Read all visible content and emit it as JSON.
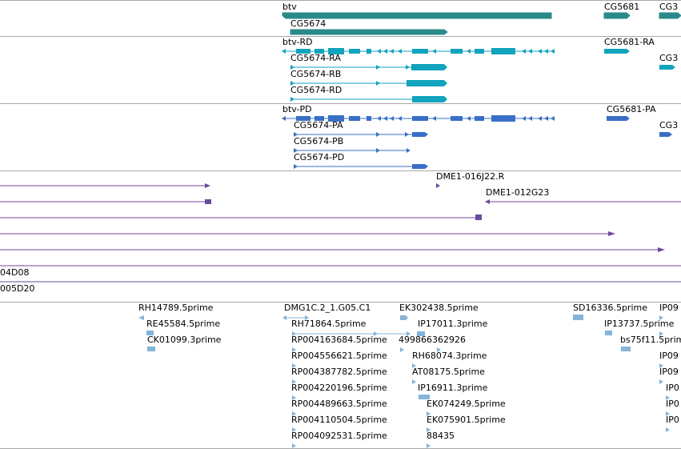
{
  "colors": {
    "gene": "#2a8a8a",
    "flybase_tx": "#12a3bd",
    "refseq_tx": "#3a6fc7",
    "clone": "#6a4aa0",
    "est": "#84b4d8",
    "divider": "#a8a8a8"
  },
  "genes": {
    "labels": [
      "btv",
      "CG5674",
      "CG5681",
      "CG3"
    ]
  },
  "flybase": {
    "labels": [
      "btv-RD",
      "CG5674-RA",
      "CG5674-RB",
      "CG5674-RD",
      "CG5681-RA",
      "CG3"
    ]
  },
  "refseq": {
    "labels": [
      "btv-PD",
      "CG5674-PA",
      "CG5674-PB",
      "CG5674-PD",
      "CG5681-PA",
      "CG3"
    ]
  },
  "clones": {
    "labels": [
      "DME1-016J22.R",
      "DME1-012G23",
      "04D08",
      "005D20"
    ]
  },
  "ests": {
    "labels": [
      "RH14789.5prime",
      "RE45584.5prime",
      "CK01099.3prime",
      "DMG1C.2_1.G05.C1",
      "RH71864.5prime",
      "RP004163684.5prime",
      "RP004556621.5prime",
      "RP004387782.5prime",
      "RP004220196.5prime",
      "RP004489663.5prime",
      "RP004110504.5prime",
      "RP004092531.5prime",
      "EK302438.5prime",
      "IP17011.3prime",
      "499866362926",
      "RH68074.3prime",
      "AT08175.5prime",
      "IP16911.3prime",
      "EK074249.5prime",
      "EK075901.5prime",
      "88435",
      "SD16336.5prime",
      "IP13737.5prime",
      "bs75f11.5prime",
      "IP09",
      "IP09",
      "IP09",
      "IP0",
      "IP0",
      "IP0"
    ]
  }
}
